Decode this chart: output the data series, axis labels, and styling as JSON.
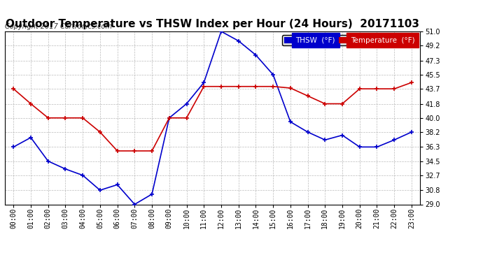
{
  "title": "Outdoor Temperature vs THSW Index per Hour (24 Hours)  20171103",
  "copyright": "Copyright 2017 Cartronics.com",
  "x_labels": [
    "00:00",
    "01:00",
    "02:00",
    "03:00",
    "04:00",
    "05:00",
    "06:00",
    "07:00",
    "08:00",
    "09:00",
    "10:00",
    "11:00",
    "12:00",
    "13:00",
    "14:00",
    "15:00",
    "16:00",
    "17:00",
    "18:00",
    "19:00",
    "20:00",
    "21:00",
    "22:00",
    "23:00"
  ],
  "thsw_values": [
    36.3,
    37.5,
    34.5,
    33.5,
    32.7,
    30.8,
    31.5,
    29.0,
    30.3,
    40.0,
    41.8,
    44.5,
    51.0,
    49.8,
    48.0,
    45.5,
    39.5,
    38.2,
    37.2,
    37.8,
    36.3,
    36.3,
    37.2,
    38.2
  ],
  "temp_values": [
    43.7,
    41.8,
    40.0,
    40.0,
    40.0,
    38.2,
    35.8,
    35.8,
    35.8,
    40.0,
    40.0,
    44.0,
    44.0,
    44.0,
    44.0,
    44.0,
    43.8,
    42.8,
    41.8,
    41.8,
    43.7,
    43.7,
    43.7,
    44.5
  ],
  "thsw_color": "#0000cc",
  "temp_color": "#cc0000",
  "y_min": 29.0,
  "y_max": 51.0,
  "y_ticks": [
    29.0,
    30.8,
    32.7,
    34.5,
    36.3,
    38.2,
    40.0,
    41.8,
    43.7,
    45.5,
    47.3,
    49.2,
    51.0
  ],
  "background_color": "#ffffff",
  "plot_bg_color": "#ffffff",
  "grid_color": "#aaaaaa",
  "title_fontsize": 11,
  "copyright_fontsize": 7,
  "tick_fontsize": 7,
  "legend_thsw_label": "THSW  (°F)",
  "legend_temp_label": "Temperature  (°F)"
}
